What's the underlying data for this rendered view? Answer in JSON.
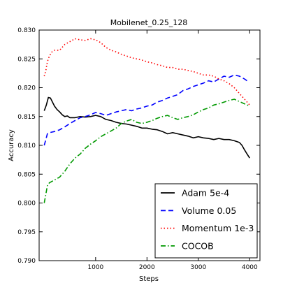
{
  "chart_data": {
    "type": "line",
    "title": "Mobilenet_0.25_128",
    "xlabel": "Steps",
    "ylabel": "Accuracy",
    "xlim": [
      -100,
      4200
    ],
    "ylim": [
      0.79,
      0.83
    ],
    "xticks": [
      1000,
      2000,
      3000,
      4000
    ],
    "yticks": [
      0.79,
      0.795,
      0.8,
      0.805,
      0.81,
      0.815,
      0.82,
      0.825,
      0.83
    ],
    "ytick_labels": [
      "0.790",
      "0.795",
      "0.800",
      "0.805",
      "0.810",
      "0.815",
      "0.820",
      "0.825",
      "0.830"
    ],
    "grid": false,
    "legend_position": "lower-right",
    "series": [
      {
        "name": "Adam 5e-4",
        "color": "#000000",
        "style": "solid",
        "points": [
          [
            0,
            0.816
          ],
          [
            40,
            0.817
          ],
          [
            80,
            0.8183
          ],
          [
            120,
            0.8182
          ],
          [
            160,
            0.8175
          ],
          [
            200,
            0.8168
          ],
          [
            250,
            0.8162
          ],
          [
            300,
            0.8158
          ],
          [
            350,
            0.8153
          ],
          [
            400,
            0.815
          ],
          [
            450,
            0.8151
          ],
          [
            500,
            0.8148
          ],
          [
            600,
            0.8148
          ],
          [
            700,
            0.815
          ],
          [
            800,
            0.8149
          ],
          [
            900,
            0.815
          ],
          [
            1000,
            0.8152
          ],
          [
            1100,
            0.815
          ],
          [
            1200,
            0.8145
          ],
          [
            1300,
            0.8143
          ],
          [
            1400,
            0.814
          ],
          [
            1500,
            0.8138
          ],
          [
            1600,
            0.8137
          ],
          [
            1700,
            0.8135
          ],
          [
            1800,
            0.8133
          ],
          [
            1900,
            0.813
          ],
          [
            2000,
            0.813
          ],
          [
            2100,
            0.8128
          ],
          [
            2200,
            0.8127
          ],
          [
            2300,
            0.8124
          ],
          [
            2400,
            0.812
          ],
          [
            2500,
            0.8122
          ],
          [
            2600,
            0.812
          ],
          [
            2700,
            0.8118
          ],
          [
            2800,
            0.8116
          ],
          [
            2900,
            0.8113
          ],
          [
            3000,
            0.8115
          ],
          [
            3100,
            0.8113
          ],
          [
            3200,
            0.8112
          ],
          [
            3300,
            0.811
          ],
          [
            3400,
            0.8112
          ],
          [
            3500,
            0.811
          ],
          [
            3600,
            0.811
          ],
          [
            3700,
            0.8108
          ],
          [
            3800,
            0.8105
          ],
          [
            3850,
            0.81
          ],
          [
            3900,
            0.8092
          ],
          [
            3950,
            0.8085
          ],
          [
            4000,
            0.8078
          ]
        ]
      },
      {
        "name": "Volume 0.05",
        "color": "#0000ff",
        "style": "dashed",
        "points": [
          [
            0,
            0.81
          ],
          [
            30,
            0.811
          ],
          [
            60,
            0.812
          ],
          [
            100,
            0.8122
          ],
          [
            200,
            0.8124
          ],
          [
            300,
            0.8127
          ],
          [
            400,
            0.8132
          ],
          [
            500,
            0.8138
          ],
          [
            600,
            0.8143
          ],
          [
            700,
            0.8148
          ],
          [
            800,
            0.815
          ],
          [
            900,
            0.8153
          ],
          [
            1000,
            0.8157
          ],
          [
            1100,
            0.8155
          ],
          [
            1200,
            0.8152
          ],
          [
            1300,
            0.8155
          ],
          [
            1400,
            0.8158
          ],
          [
            1500,
            0.816
          ],
          [
            1600,
            0.8162
          ],
          [
            1700,
            0.816
          ],
          [
            1800,
            0.8163
          ],
          [
            1900,
            0.8165
          ],
          [
            2000,
            0.8168
          ],
          [
            2100,
            0.817
          ],
          [
            2200,
            0.8175
          ],
          [
            2300,
            0.8178
          ],
          [
            2400,
            0.8182
          ],
          [
            2500,
            0.8185
          ],
          [
            2600,
            0.8188
          ],
          [
            2700,
            0.8195
          ],
          [
            2800,
            0.8198
          ],
          [
            2900,
            0.8202
          ],
          [
            3000,
            0.8205
          ],
          [
            3100,
            0.8208
          ],
          [
            3200,
            0.8212
          ],
          [
            3300,
            0.821
          ],
          [
            3400,
            0.8215
          ],
          [
            3500,
            0.822
          ],
          [
            3600,
            0.8218
          ],
          [
            3700,
            0.8222
          ],
          [
            3800,
            0.822
          ],
          [
            3900,
            0.8215
          ],
          [
            3950,
            0.8212
          ],
          [
            4000,
            0.8212
          ]
        ]
      },
      {
        "name": "Momentum 1e-3",
        "color": "#ff0000",
        "style": "dotted",
        "points": [
          [
            0,
            0.822
          ],
          [
            30,
            0.823
          ],
          [
            60,
            0.8245
          ],
          [
            100,
            0.8255
          ],
          [
            150,
            0.8262
          ],
          [
            200,
            0.8265
          ],
          [
            300,
            0.8265
          ],
          [
            400,
            0.8275
          ],
          [
            500,
            0.828
          ],
          [
            600,
            0.8285
          ],
          [
            700,
            0.8283
          ],
          [
            800,
            0.8282
          ],
          [
            900,
            0.8285
          ],
          [
            1000,
            0.8283
          ],
          [
            1100,
            0.8278
          ],
          [
            1200,
            0.827
          ],
          [
            1300,
            0.8265
          ],
          [
            1400,
            0.8262
          ],
          [
            1500,
            0.8258
          ],
          [
            1600,
            0.8255
          ],
          [
            1700,
            0.8252
          ],
          [
            1800,
            0.825
          ],
          [
            1900,
            0.8248
          ],
          [
            2000,
            0.8245
          ],
          [
            2100,
            0.8243
          ],
          [
            2200,
            0.824
          ],
          [
            2300,
            0.8238
          ],
          [
            2400,
            0.8235
          ],
          [
            2500,
            0.8235
          ],
          [
            2600,
            0.8232
          ],
          [
            2700,
            0.8232
          ],
          [
            2800,
            0.823
          ],
          [
            2900,
            0.8228
          ],
          [
            3000,
            0.8225
          ],
          [
            3100,
            0.8222
          ],
          [
            3200,
            0.8222
          ],
          [
            3300,
            0.822
          ],
          [
            3400,
            0.8215
          ],
          [
            3500,
            0.8212
          ],
          [
            3600,
            0.8207
          ],
          [
            3700,
            0.82
          ],
          [
            3800,
            0.819
          ],
          [
            3900,
            0.818
          ],
          [
            3950,
            0.8175
          ],
          [
            4000,
            0.817
          ]
        ]
      },
      {
        "name": "COCOB",
        "color": "#009900",
        "style": "dashdot",
        "points": [
          [
            0,
            0.8
          ],
          [
            30,
            0.8015
          ],
          [
            60,
            0.803
          ],
          [
            100,
            0.8035
          ],
          [
            200,
            0.804
          ],
          [
            300,
            0.8045
          ],
          [
            400,
            0.8055
          ],
          [
            500,
            0.8068
          ],
          [
            600,
            0.8078
          ],
          [
            700,
            0.8085
          ],
          [
            800,
            0.8095
          ],
          [
            900,
            0.8102
          ],
          [
            1000,
            0.8108
          ],
          [
            1100,
            0.8115
          ],
          [
            1200,
            0.812
          ],
          [
            1300,
            0.8125
          ],
          [
            1400,
            0.813
          ],
          [
            1500,
            0.8138
          ],
          [
            1600,
            0.8142
          ],
          [
            1700,
            0.8145
          ],
          [
            1800,
            0.814
          ],
          [
            1900,
            0.8138
          ],
          [
            2000,
            0.814
          ],
          [
            2100,
            0.8143
          ],
          [
            2200,
            0.8147
          ],
          [
            2300,
            0.815
          ],
          [
            2400,
            0.8152
          ],
          [
            2500,
            0.8148
          ],
          [
            2600,
            0.8145
          ],
          [
            2700,
            0.8148
          ],
          [
            2800,
            0.815
          ],
          [
            2900,
            0.8153
          ],
          [
            3000,
            0.8158
          ],
          [
            3100,
            0.8162
          ],
          [
            3200,
            0.8165
          ],
          [
            3300,
            0.817
          ],
          [
            3400,
            0.8172
          ],
          [
            3500,
            0.8175
          ],
          [
            3600,
            0.8178
          ],
          [
            3700,
            0.818
          ],
          [
            3800,
            0.8176
          ],
          [
            3900,
            0.8172
          ],
          [
            4000,
            0.8168
          ]
        ]
      }
    ]
  }
}
